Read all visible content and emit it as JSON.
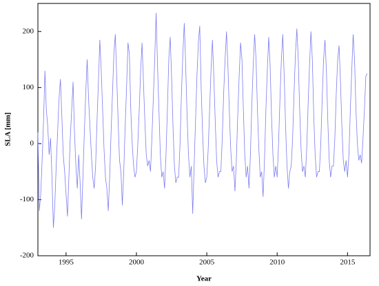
{
  "chart_data": {
    "type": "line",
    "x_label": "Year",
    "y_label": "SLA [mm]",
    "color": "#7b7bf0",
    "xlim": [
      1993,
      2016.6
    ],
    "ylim": [
      -200,
      250
    ],
    "xticks": [
      1995,
      2000,
      2005,
      2010,
      2015
    ],
    "yticks": [
      -200,
      -100,
      0,
      100,
      200
    ],
    "x": [
      1993,
      1993.1,
      1993.2,
      1993.3,
      1993.4,
      1993.5,
      1993.6,
      1993.7,
      1993.8,
      1993.9,
      1994,
      1994.1,
      1994.2,
      1994.3,
      1994.4,
      1994.5,
      1994.6,
      1994.7,
      1994.8,
      1994.9,
      1995,
      1995.1,
      1995.2,
      1995.3,
      1995.4,
      1995.5,
      1995.6,
      1995.7,
      1995.8,
      1995.9,
      1996,
      1996.1,
      1996.2,
      1996.3,
      1996.4,
      1996.5,
      1996.6,
      1996.7,
      1996.8,
      1996.9,
      1997,
      1997.1,
      1997.2,
      1997.3,
      1997.4,
      1997.5,
      1997.6,
      1997.7,
      1997.8,
      1997.9,
      1998,
      1998.1,
      1998.2,
      1998.3,
      1998.4,
      1998.5,
      1998.6,
      1998.7,
      1998.8,
      1998.9,
      1999,
      1999.1,
      1999.2,
      1999.3,
      1999.4,
      1999.5,
      1999.6,
      1999.7,
      1999.8,
      1999.9,
      2000,
      2000.1,
      2000.2,
      2000.3,
      2000.4,
      2000.5,
      2000.6,
      2000.7,
      2000.8,
      2000.9,
      2001,
      2001.1,
      2001.2,
      2001.3,
      2001.4,
      2001.5,
      2001.6,
      2001.7,
      2001.8,
      2001.9,
      2002,
      2002.1,
      2002.2,
      2002.3,
      2002.4,
      2002.5,
      2002.6,
      2002.7,
      2002.8,
      2002.9,
      2003,
      2003.1,
      2003.2,
      2003.3,
      2003.4,
      2003.5,
      2003.6,
      2003.7,
      2003.8,
      2003.9,
      2004,
      2004.1,
      2004.2,
      2004.3,
      2004.4,
      2004.5,
      2004.6,
      2004.7,
      2004.8,
      2004.9,
      2005,
      2005.1,
      2005.2,
      2005.3,
      2005.4,
      2005.5,
      2005.6,
      2005.7,
      2005.8,
      2005.9,
      2006,
      2006.1,
      2006.2,
      2006.3,
      2006.4,
      2006.5,
      2006.6,
      2006.7,
      2006.8,
      2006.9,
      2007,
      2007.1,
      2007.2,
      2007.3,
      2007.4,
      2007.5,
      2007.6,
      2007.7,
      2007.8,
      2007.9,
      2008,
      2008.1,
      2008.2,
      2008.3,
      2008.4,
      2008.5,
      2008.6,
      2008.7,
      2008.8,
      2008.9,
      2009,
      2009.1,
      2009.2,
      2009.3,
      2009.4,
      2009.5,
      2009.6,
      2009.7,
      2009.8,
      2009.9,
      2010,
      2010.1,
      2010.2,
      2010.3,
      2010.4,
      2010.5,
      2010.6,
      2010.7,
      2010.8,
      2010.9,
      2011,
      2011.1,
      2011.2,
      2011.3,
      2011.4,
      2011.5,
      2011.6,
      2011.7,
      2011.8,
      2011.9,
      2012,
      2012.1,
      2012.2,
      2012.3,
      2012.4,
      2012.5,
      2012.6,
      2012.7,
      2012.8,
      2012.9,
      2013,
      2013.1,
      2013.2,
      2013.3,
      2013.4,
      2013.5,
      2013.6,
      2013.7,
      2013.8,
      2013.9,
      2014,
      2014.1,
      2014.2,
      2014.3,
      2014.4,
      2014.5,
      2014.6,
      2014.7,
      2014.8,
      2014.9,
      2015,
      2015.1,
      2015.2,
      2015.3,
      2015.4,
      2015.5,
      2015.6,
      2015.7,
      2015.8,
      2015.9,
      2016,
      2016.1,
      2016.2,
      2016.3,
      2016.4
    ],
    "values": [
      20,
      -120,
      -90,
      -30,
      40,
      130,
      60,
      30,
      -20,
      10,
      -60,
      -150,
      -110,
      -40,
      20,
      80,
      115,
      50,
      -20,
      -50,
      -90,
      -130,
      -60,
      10,
      60,
      110,
      20,
      -40,
      -80,
      -20,
      -70,
      -135,
      -60,
      20,
      90,
      150,
      80,
      30,
      -20,
      -60,
      -80,
      -40,
      40,
      110,
      185,
      130,
      60,
      -10,
      -60,
      -80,
      -120,
      -60,
      20,
      90,
      160,
      195,
      120,
      40,
      -30,
      -50,
      -110,
      -50,
      30,
      100,
      180,
      160,
      60,
      0,
      -40,
      -60,
      -50,
      0,
      60,
      130,
      180,
      110,
      40,
      -20,
      -40,
      -30,
      -50,
      10,
      80,
      150,
      233,
      140,
      60,
      -20,
      -60,
      -50,
      -80,
      -20,
      60,
      150,
      190,
      120,
      30,
      -40,
      -70,
      -60,
      -60,
      0,
      90,
      160,
      215,
      140,
      50,
      -20,
      -60,
      -40,
      -125,
      -40,
      40,
      120,
      180,
      210,
      100,
      20,
      -40,
      -70,
      -60,
      -10,
      60,
      130,
      185,
      120,
      40,
      -30,
      -60,
      -50,
      -50,
      10,
      90,
      150,
      200,
      140,
      60,
      -10,
      -50,
      -40,
      -85,
      -30,
      50,
      120,
      180,
      150,
      60,
      -20,
      -60,
      -40,
      -80,
      -20,
      70,
      140,
      195,
      150,
      60,
      -10,
      -60,
      -50,
      -95,
      -30,
      60,
      130,
      190,
      140,
      50,
      -20,
      -60,
      -40,
      -60,
      0,
      80,
      150,
      195,
      120,
      30,
      -40,
      -80,
      -50,
      -40,
      10,
      90,
      160,
      205,
      150,
      60,
      -10,
      -50,
      -40,
      -60,
      -10,
      70,
      140,
      200,
      150,
      50,
      -20,
      -60,
      -50,
      -50,
      0,
      80,
      150,
      185,
      130,
      40,
      -30,
      -60,
      -40,
      -40,
      10,
      90,
      150,
      175,
      110,
      30,
      -30,
      -50,
      -30,
      -60,
      -20,
      60,
      130,
      195,
      150,
      60,
      0,
      -30,
      -20,
      -35,
      10,
      60,
      120,
      125
    ]
  }
}
